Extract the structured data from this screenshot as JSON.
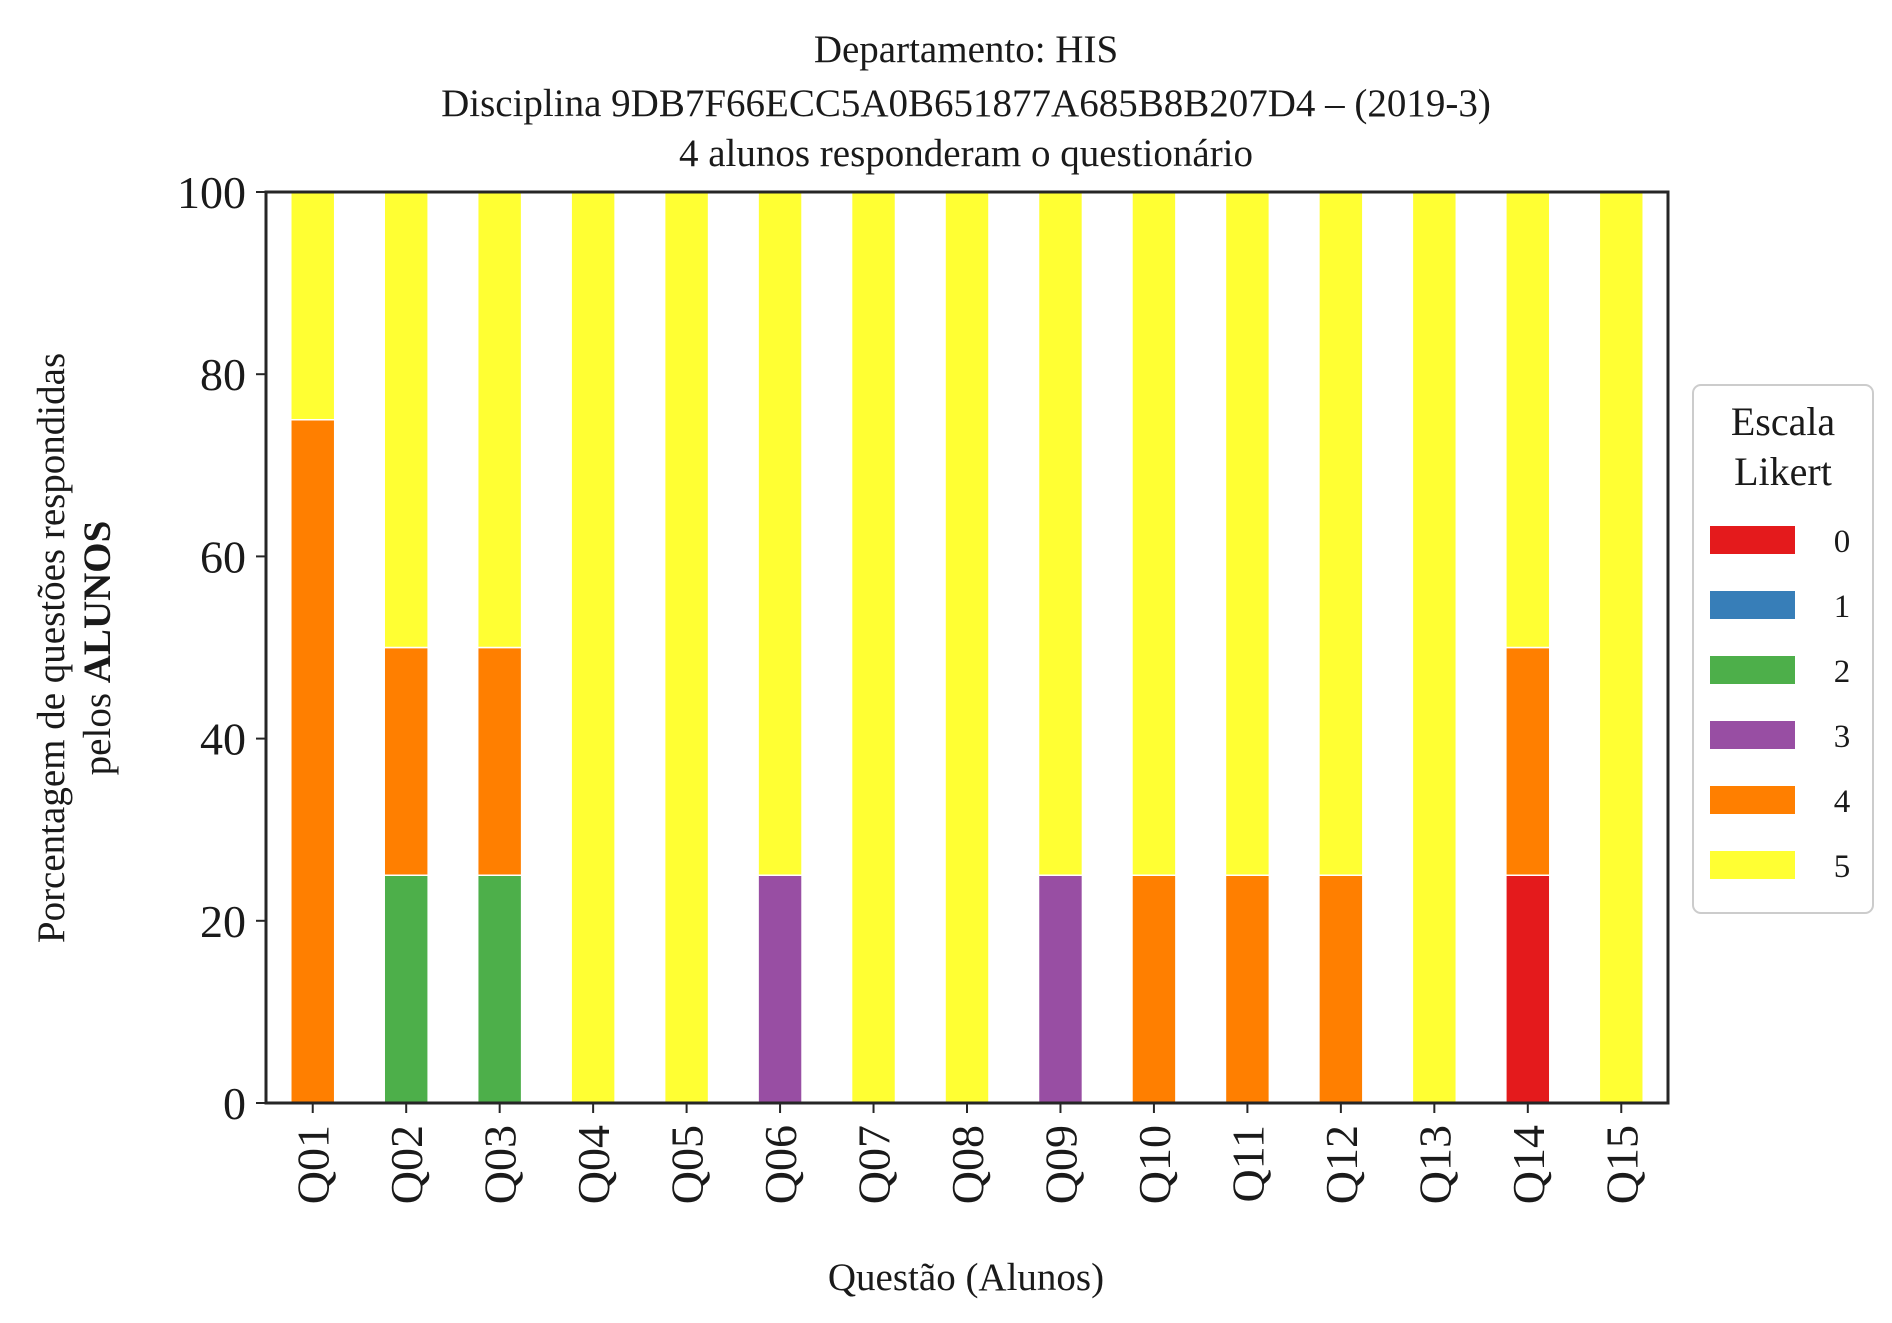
{
  "chart_data": {
    "type": "bar",
    "stacked": true,
    "title_lines": [
      "Departamento: HIS",
      "Disciplina 9DB7F66ECC5A0B651877A685B8B207D4 – (2019-3)",
      "4 alunos responderam o questionário"
    ],
    "xlabel": "Questão (Alunos)",
    "ylabel_line1": "Porcentagem de questões respondidas",
    "ylabel_line2_prefix": "pelos ",
    "ylabel_line2_bold": "ALUNOS",
    "ylim": [
      0,
      100
    ],
    "yticks": [
      "0",
      "20",
      "40",
      "60",
      "80",
      "100"
    ],
    "grid": false,
    "legend_position": "right",
    "legend_title_lines": [
      "Escala",
      "Likert"
    ],
    "categories": [
      "Q01",
      "Q02",
      "Q03",
      "Q04",
      "Q05",
      "Q06",
      "Q07",
      "Q08",
      "Q09",
      "Q10",
      "Q11",
      "Q12",
      "Q13",
      "Q14",
      "Q15"
    ],
    "series": [
      {
        "name": "0",
        "color": "#e41a1c",
        "values": [
          0,
          0,
          0,
          0,
          0,
          0,
          0,
          0,
          0,
          0,
          0,
          0,
          0,
          25,
          0
        ]
      },
      {
        "name": "1",
        "color": "#377eb8",
        "values": [
          0,
          0,
          0,
          0,
          0,
          0,
          0,
          0,
          0,
          0,
          0,
          0,
          0,
          0,
          0
        ]
      },
      {
        "name": "2",
        "color": "#4daf4a",
        "values": [
          0,
          25,
          25,
          0,
          0,
          0,
          0,
          0,
          0,
          0,
          0,
          0,
          0,
          0,
          0
        ]
      },
      {
        "name": "3",
        "color": "#984ea3",
        "values": [
          0,
          0,
          0,
          0,
          0,
          25,
          0,
          0,
          25,
          0,
          0,
          0,
          0,
          0,
          0
        ]
      },
      {
        "name": "4",
        "color": "#ff7f00",
        "values": [
          75,
          25,
          25,
          0,
          0,
          0,
          0,
          0,
          0,
          25,
          25,
          25,
          0,
          25,
          0
        ]
      },
      {
        "name": "5",
        "color": "#ffff33",
        "values": [
          25,
          50,
          50,
          100,
          100,
          75,
          100,
          100,
          75,
          75,
          75,
          75,
          100,
          50,
          100
        ]
      }
    ]
  }
}
